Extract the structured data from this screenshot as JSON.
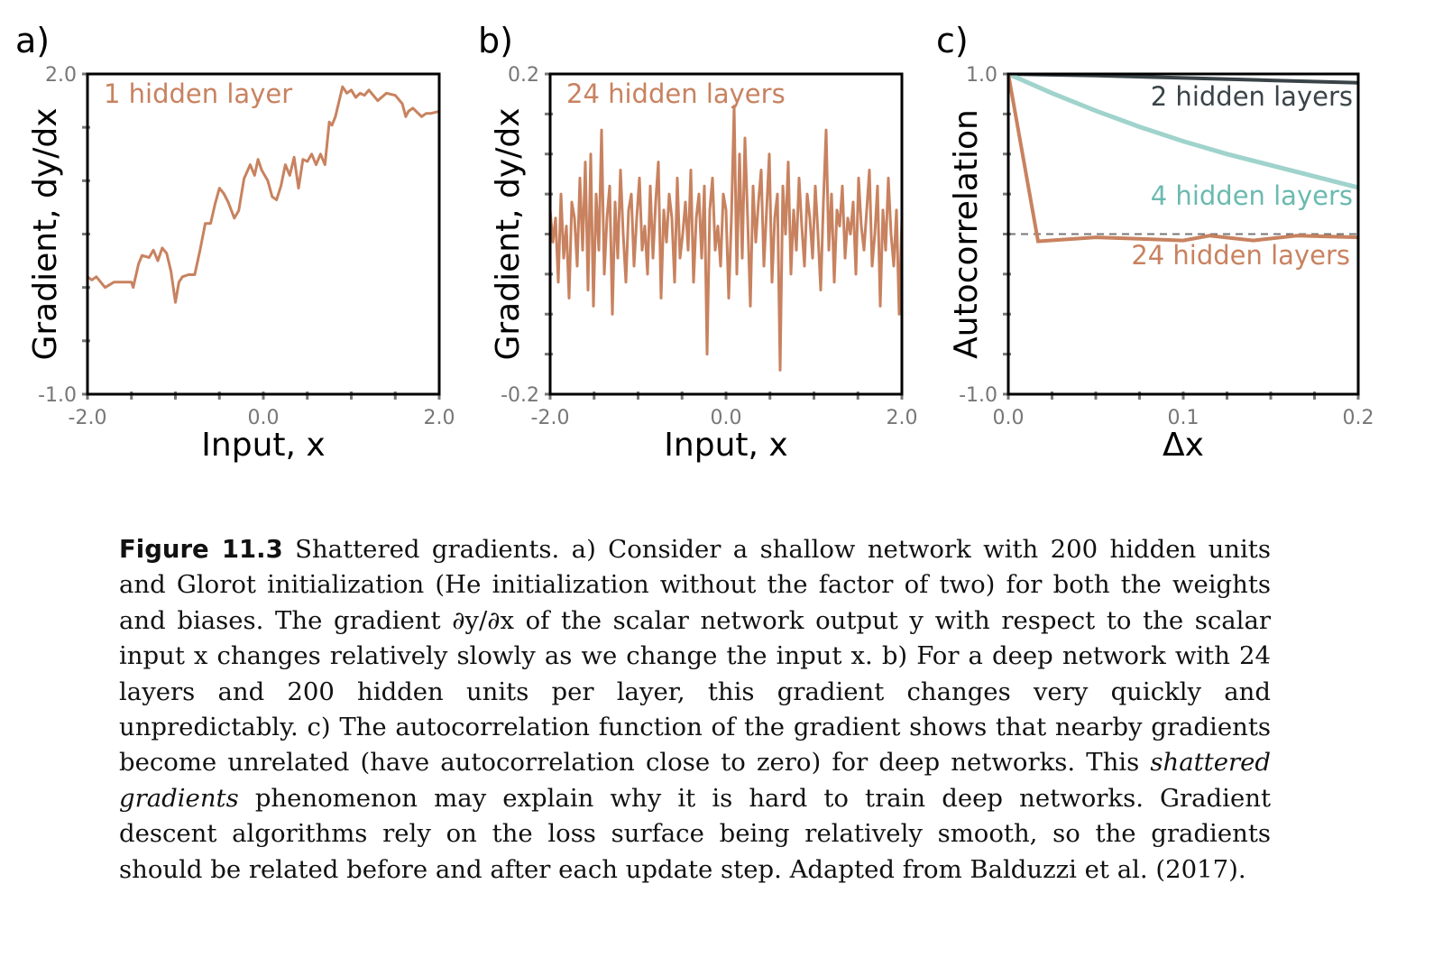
{
  "colors": {
    "orange": "#c8825f",
    "teal": "#9fd3cc",
    "dark": "#3a4448",
    "axis": "#000000",
    "tick": "#777777",
    "dashed": "#777777"
  },
  "chart_data": [
    {
      "panel": "a)",
      "type": "line",
      "series_label": "1 hidden layer",
      "xlabel": "Input, x",
      "ylabel": "Gradient, dy/dx",
      "xlim": [
        -2.0,
        2.0
      ],
      "ylim": [
        -1.0,
        2.0
      ],
      "xticklabels": [
        "-2.0",
        "0.0",
        "2.0"
      ],
      "yticklabels": [
        "2.0",
        "-1.0"
      ],
      "x": [
        -2.0,
        -1.95,
        -1.9,
        -1.8,
        -1.7,
        -1.6,
        -1.5,
        -1.48,
        -1.42,
        -1.38,
        -1.3,
        -1.25,
        -1.2,
        -1.15,
        -1.1,
        -1.05,
        -1.0,
        -0.96,
        -0.92,
        -0.85,
        -0.8,
        -0.78,
        -0.72,
        -0.66,
        -0.6,
        -0.55,
        -0.5,
        -0.45,
        -0.4,
        -0.33,
        -0.28,
        -0.22,
        -0.15,
        -0.1,
        -0.06,
        -0.02,
        0.05,
        0.1,
        0.15,
        0.2,
        0.25,
        0.3,
        0.35,
        0.4,
        0.45,
        0.5,
        0.55,
        0.6,
        0.65,
        0.7,
        0.75,
        0.78,
        0.82,
        0.9,
        0.95,
        1.0,
        1.05,
        1.1,
        1.15,
        1.2,
        1.3,
        1.4,
        1.5,
        1.58,
        1.62,
        1.65,
        1.7,
        1.8,
        1.85,
        1.9,
        2.0
      ],
      "y": [
        0.1,
        0.07,
        0.1,
        0.0,
        0.05,
        0.05,
        0.05,
        0.0,
        0.22,
        0.3,
        0.28,
        0.35,
        0.25,
        0.37,
        0.32,
        0.15,
        -0.14,
        0.05,
        0.1,
        0.12,
        0.12,
        0.12,
        0.35,
        0.6,
        0.6,
        0.78,
        0.93,
        0.88,
        0.8,
        0.65,
        0.72,
        1.02,
        1.15,
        1.05,
        1.2,
        1.1,
        1.0,
        0.85,
        0.82,
        0.95,
        1.15,
        1.05,
        1.22,
        0.93,
        1.2,
        1.18,
        1.25,
        1.15,
        1.25,
        1.15,
        1.55,
        1.52,
        1.6,
        1.88,
        1.82,
        1.85,
        1.78,
        1.82,
        1.8,
        1.85,
        1.75,
        1.82,
        1.8,
        1.72,
        1.6,
        1.65,
        1.68,
        1.6,
        1.63,
        1.63,
        1.65
      ]
    },
    {
      "panel": "b)",
      "type": "line",
      "series_label": "24 hidden layers",
      "xlabel": "Input, x",
      "ylabel": "Gradient, dy/dx",
      "xlim": [
        -2.0,
        2.0
      ],
      "ylim": [
        -0.2,
        0.2
      ],
      "xticklabels": [
        "-2.0",
        "0.0",
        "2.0"
      ],
      "yticklabels": [
        "0.2",
        "-0.2"
      ],
      "y": [
        0.03,
        -0.01,
        0.02,
        -0.06,
        0.05,
        -0.03,
        0.01,
        -0.08,
        0.04,
        0.02,
        -0.04,
        0.07,
        -0.02,
        0.09,
        -0.07,
        0.1,
        -0.09,
        0.05,
        -0.02,
        0.13,
        -0.05,
        0.02,
        0.06,
        -0.1,
        0.04,
        -0.03,
        0.08,
        0.0,
        -0.06,
        0.03,
        0.05,
        -0.04,
        0.02,
        0.07,
        -0.02,
        0.01,
        -0.05,
        0.06,
        -0.03,
        0.04,
        0.09,
        -0.08,
        0.03,
        -0.01,
        0.05,
        0.02,
        -0.06,
        0.07,
        -0.03,
        0.0,
        0.04,
        -0.02,
        0.08,
        -0.06,
        0.02,
        0.05,
        -0.03,
        0.06,
        -0.15,
        0.03,
        0.07,
        -0.02,
        0.01,
        -0.04,
        0.05,
        0.03,
        -0.08,
        0.02,
        0.16,
        -0.05,
        0.1,
        -0.03,
        0.12,
        0.02,
        -0.09,
        0.06,
        -0.01,
        0.04,
        0.08,
        -0.04,
        0.03,
        0.1,
        -0.06,
        0.02,
        0.05,
        -0.17,
        0.06,
        0.0,
        0.09,
        -0.05,
        0.03,
        -0.02,
        0.07,
        0.01,
        -0.04,
        0.05,
        0.02,
        -0.03,
        0.06,
        0.0,
        -0.07,
        0.04,
        0.13,
        -0.02,
        0.05,
        -0.06,
        0.03,
        0.01,
        0.06,
        -0.03,
        0.02,
        0.0,
        0.04,
        -0.05,
        0.07,
        0.01,
        -0.02,
        0.03,
        0.08,
        -0.04,
        0.0,
        0.06,
        -0.09,
        0.03,
        -0.02,
        0.07,
        0.0,
        -0.04,
        0.03,
        -0.1,
        0.02
      ]
    },
    {
      "panel": "c)",
      "type": "line",
      "xlabel": "Δx",
      "ylabel": "Autocorrelation",
      "xlim": [
        0.0,
        0.2
      ],
      "ylim": [
        -1.0,
        1.0
      ],
      "xticklabels": [
        "0.0",
        "0.1",
        "0.2"
      ],
      "yticklabels": [
        "1.0",
        "-1.0"
      ],
      "reference_line": 0.0,
      "series": [
        {
          "name": "2 hidden layers",
          "color": "#3a4448",
          "x": [
            0,
            0.05,
            0.1,
            0.15,
            0.2
          ],
          "y": [
            1.0,
            0.99,
            0.975,
            0.96,
            0.945
          ]
        },
        {
          "name": "4 hidden layers",
          "color": "#9fd3cc",
          "x": [
            0,
            0.025,
            0.05,
            0.075,
            0.1,
            0.125,
            0.15,
            0.175,
            0.2
          ],
          "y": [
            1.0,
            0.88,
            0.77,
            0.67,
            0.58,
            0.5,
            0.43,
            0.36,
            0.29
          ]
        },
        {
          "name": "24 hidden layers",
          "color": "#c8825f",
          "x": [
            0,
            0.017,
            0.05,
            0.075,
            0.1,
            0.115,
            0.14,
            0.165,
            0.2
          ],
          "y": [
            1.0,
            -0.045,
            -0.02,
            -0.03,
            -0.04,
            -0.01,
            -0.04,
            -0.01,
            -0.02
          ]
        }
      ]
    }
  ],
  "caption": {
    "label": "Figure 11.3",
    "t1": " Shattered gradients. a) Consider a shallow network with 200 hidden units and Glorot initialization (He initialization without the factor of two) for both the weights and biases. The gradient ∂y/∂x of the scalar network output y with respect to the scalar input x changes relatively slowly as we change the input x. b) For a deep network with 24 layers and 200 hidden units per layer, this gradient changes very quickly and unpredictably. c) The autocorrelation function of the gradient shows that nearby gradients become unrelated (have autocorrelation close to zero) for deep networks. This ",
    "emph": "shattered gradients",
    "t2": " phenomenon may explain why it is hard to train deep networks. Gradient descent algorithms rely on the loss surface being relatively smooth, so the gradients should be related before and after each update step. Adapted from Balduzzi et al. (2017)."
  }
}
